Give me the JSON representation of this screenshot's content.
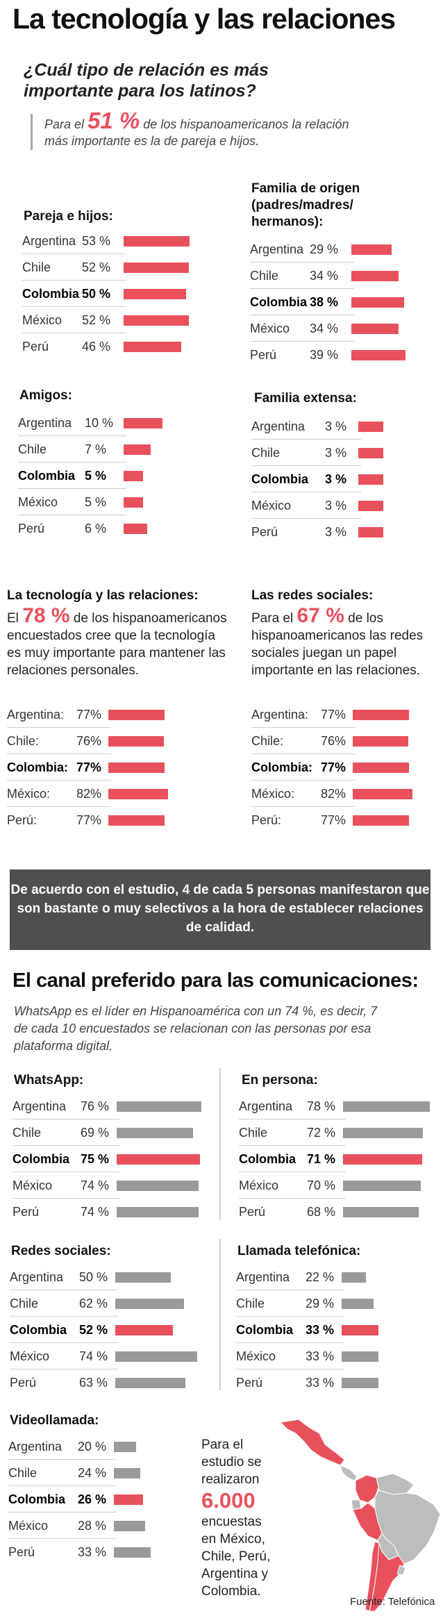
{
  "title": "La tecnología y las relaciones",
  "question": "¿Cuál tipo de relación es más importante para los latinos?",
  "intro": {
    "pre": "Para el",
    "big": "51 %",
    "post": "de los hispanoamericanos la relación más importante es la de pareja e hijos."
  },
  "chart_data": [
    {
      "type": "bar",
      "title": "Pareja e hijos:",
      "categories": [
        "Argentina",
        "Chile",
        "Colombia",
        "México",
        "Perú"
      ],
      "values": [
        53,
        52,
        50,
        52,
        46
      ],
      "labels": [
        "53 %",
        "52 %",
        "50 %",
        "52 %",
        "46 %"
      ],
      "highlight": "Colombia",
      "color": "#e8515c"
    },
    {
      "type": "bar",
      "title": "Familia de origen (padres/madres/ hermanos):",
      "categories": [
        "Argentina",
        "Chile",
        "Colombia",
        "México",
        "Perú"
      ],
      "values": [
        29,
        34,
        38,
        34,
        39
      ],
      "labels": [
        "29 %",
        "34 %",
        "38 %",
        "34 %",
        "39 %"
      ],
      "highlight": "Colombia",
      "color": "#e8515c"
    },
    {
      "type": "bar",
      "title": "Amigos:",
      "categories": [
        "Argentina",
        "Chile",
        "Colombia",
        "México",
        "Perú"
      ],
      "values": [
        10,
        7,
        5,
        5,
        6
      ],
      "labels": [
        "10 %",
        "7 %",
        "5 %",
        "5 %",
        "6 %"
      ],
      "highlight": "Colombia",
      "color": "#e8515c"
    },
    {
      "type": "bar",
      "title": "Familia extensa:",
      "categories": [
        "Argentina",
        "Chile",
        "Colombia",
        "México",
        "Perú"
      ],
      "values": [
        3,
        3,
        3,
        3,
        3
      ],
      "labels": [
        "3 %",
        "3 %",
        "3 %",
        "3 %",
        "3 %"
      ],
      "highlight": "Colombia",
      "color": "#e8515c"
    },
    {
      "type": "bar",
      "title": "La tecnología y las relaciones:",
      "categories": [
        "Argentina:",
        "Chile:",
        "Colombia:",
        "México:",
        "Perú:"
      ],
      "values": [
        77,
        76,
        77,
        82,
        77
      ],
      "labels": [
        "77%",
        "76%",
        "77%",
        "82%",
        "77%"
      ],
      "highlight": "Colombia:",
      "color": "#e8515c"
    },
    {
      "type": "bar",
      "title": "Las redes sociales:",
      "categories": [
        "Argentina:",
        "Chile:",
        "Colombia:",
        "México:",
        "Perú:"
      ],
      "values": [
        77,
        76,
        77,
        82,
        77
      ],
      "labels": [
        "77%",
        "76%",
        "77%",
        "82%",
        "77%"
      ],
      "highlight": "Colombia:",
      "color": "#e8515c"
    },
    {
      "type": "bar",
      "title": "WhatsApp:",
      "categories": [
        "Argentina",
        "Chile",
        "Colombia",
        "México",
        "Perú"
      ],
      "values": [
        76,
        69,
        75,
        74,
        74
      ],
      "labels": [
        "76 %",
        "69 %",
        "75 %",
        "74 %",
        "74 %"
      ],
      "highlight": "Colombia",
      "color": "#9a9a9a",
      "highlight_color": "#e8515c"
    },
    {
      "type": "bar",
      "title": "En persona:",
      "categories": [
        "Argentina",
        "Chile",
        "Colombia",
        "México",
        "Perú"
      ],
      "values": [
        78,
        72,
        71,
        70,
        68
      ],
      "labels": [
        "78 %",
        "72 %",
        "71 %",
        "70 %",
        "68 %"
      ],
      "highlight": "Colombia",
      "color": "#9a9a9a",
      "highlight_color": "#e8515c"
    },
    {
      "type": "bar",
      "title": "Redes sociales:",
      "categories": [
        "Argentina",
        "Chile",
        "Colombia",
        "México",
        "Perú"
      ],
      "values": [
        50,
        62,
        52,
        74,
        63
      ],
      "labels": [
        "50 %",
        "62 %",
        "52 %",
        "74 %",
        "63 %"
      ],
      "highlight": "Colombia",
      "color": "#9a9a9a",
      "highlight_color": "#e8515c"
    },
    {
      "type": "bar",
      "title": "Llamada telefónica:",
      "categories": [
        "Argentina",
        "Chile",
        "Colombia",
        "México",
        "Perú"
      ],
      "values": [
        22,
        29,
        33,
        33,
        33
      ],
      "labels": [
        "22 %",
        "29 %",
        "33 %",
        "33 %",
        "33 %"
      ],
      "highlight": "Colombia",
      "color": "#9a9a9a",
      "highlight_color": "#e8515c"
    },
    {
      "type": "bar",
      "title": "Videollamada:",
      "categories": [
        "Argentina",
        "Chile",
        "Colombia",
        "México",
        "Perú"
      ],
      "values": [
        20,
        24,
        26,
        28,
        33
      ],
      "labels": [
        "20 %",
        "24 %",
        "26 %",
        "28 %",
        "33 %"
      ],
      "highlight": "Colombia",
      "color": "#9a9a9a",
      "highlight_color": "#e8515c"
    }
  ],
  "tech": {
    "pre": "El",
    "big": "78 %",
    "post": "de los hispanoamericanos encuestados cree que la tecnología es muy importante para mantener las relaciones personales."
  },
  "redes": {
    "pre": "Para el",
    "big": "67 %",
    "post": "de los hispanoamericanos las redes sociales juegan un papel importante en las relaciones."
  },
  "banner": "De acuerdo con el estudio, 4 de cada 5 personas manifestaron que son bastante o muy selectivos a la hora de establecer relaciones de calidad.",
  "section2": {
    "title": "El canal preferido para las comunicaciones:",
    "subtitle": "WhatsApp es el líder en Hispanoamérica con un 74 %, es decir, 7 de cada 10 encuestados se relacionan con las personas por esa plataforma digital."
  },
  "map_note": {
    "pre": "Para el estudio se realizaron",
    "big": "6.000",
    "post": "encuestas en México, Chile, Perú, Argentina y Colombia."
  },
  "source": "Fuente: Telefónica",
  "colors": {
    "accent": "#e8515c",
    "grey_bar": "#9a9a9a",
    "banner_bg": "#4f4f4f"
  }
}
